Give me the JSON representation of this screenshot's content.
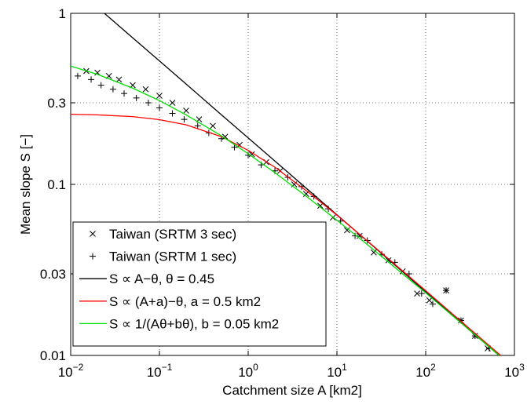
{
  "chart_data": {
    "type": "scatter",
    "xlabel": "Catchment size A [km2]",
    "ylabel": "Mean slope S [−]",
    "xscale": "log",
    "yscale": "log",
    "grid": true,
    "legend": "lower left",
    "xlim": [
      0.01,
      1000
    ],
    "ylim": [
      0.01,
      1
    ],
    "xticks": [
      {
        "value": 0.01,
        "label": "10−2"
      },
      {
        "value": 0.1,
        "label": "10−1"
      },
      {
        "value": 1,
        "label": "100"
      },
      {
        "value": 10,
        "label": "101"
      },
      {
        "value": 100,
        "label": "102"
      },
      {
        "value": 1000,
        "label": "103"
      }
    ],
    "yticks": [
      0.01,
      0.03,
      0.1,
      0.3,
      1
    ],
    "series": [
      {
        "name": "Taiwan (SRTM 3 sec)",
        "mark": "x",
        "color": "#000000",
        "x": [
          0.015,
          0.02,
          0.027,
          0.035,
          0.05,
          0.07,
          0.1,
          0.14,
          0.2,
          0.28,
          0.4,
          0.55,
          0.8,
          1.1,
          1.6,
          2.3,
          3.3,
          4.5,
          6.5,
          9,
          13,
          18,
          26,
          38,
          55,
          80,
          110,
          170,
          250,
          360,
          500
        ],
        "values": [
          0.46,
          0.45,
          0.43,
          0.41,
          0.38,
          0.36,
          0.33,
          0.3,
          0.27,
          0.24,
          0.22,
          0.19,
          0.17,
          0.15,
          0.135,
          0.12,
          0.1,
          0.088,
          0.075,
          0.064,
          0.054,
          0.05,
          0.04,
          0.036,
          0.031,
          0.023,
          0.021,
          0.024,
          0.016,
          0.013,
          0.011
        ]
      },
      {
        "name": "Taiwan (SRTM 1 sec)",
        "mark": "+",
        "color": "#000000",
        "x": [
          0.012,
          0.017,
          0.022,
          0.03,
          0.04,
          0.055,
          0.075,
          0.1,
          0.14,
          0.19,
          0.27,
          0.36,
          0.5,
          0.7,
          1,
          1.4,
          2,
          2.8,
          4,
          5.5,
          8,
          11,
          16,
          22,
          32,
          45,
          65,
          90,
          120,
          170,
          250,
          360,
          520
        ],
        "values": [
          0.43,
          0.41,
          0.38,
          0.36,
          0.34,
          0.32,
          0.3,
          0.28,
          0.26,
          0.24,
          0.22,
          0.2,
          0.185,
          0.165,
          0.148,
          0.13,
          0.12,
          0.11,
          0.097,
          0.085,
          0.072,
          0.061,
          0.05,
          0.047,
          0.039,
          0.035,
          0.03,
          0.023,
          0.02,
          0.024,
          0.016,
          0.013,
          0.011
        ]
      },
      {
        "name": "S ∝ A−θ, θ = 0.45",
        "mark": "line",
        "color": "#000000",
        "x": [
          0.024,
          0.05,
          0.1,
          0.2,
          0.5,
          1,
          2,
          5,
          10,
          20,
          50,
          100,
          200,
          500,
          700
        ],
        "values": [
          1.0,
          0.719,
          0.527,
          0.386,
          0.255,
          0.187,
          0.137,
          0.0906,
          0.0664,
          0.0486,
          0.0322,
          0.0235,
          0.0172,
          0.0114,
          0.0098
        ]
      },
      {
        "name": "S ∝ (A+a)−θ, a = 0.5 km2",
        "mark": "line",
        "color": "#ff0000",
        "x": [
          0.01,
          0.02,
          0.05,
          0.1,
          0.2,
          0.5,
          1,
          2,
          5,
          10,
          20,
          50,
          100,
          200,
          500,
          700
        ],
        "values": [
          0.257,
          0.255,
          0.249,
          0.239,
          0.223,
          0.19,
          0.158,
          0.126,
          0.0882,
          0.066,
          0.0487,
          0.0325,
          0.0239,
          0.0175,
          0.0116,
          0.01
        ]
      },
      {
        "name": "S ∝ 1/(Aθ+bθ), b = 0.05 km2",
        "mark": "line",
        "color": "#00e000",
        "x": [
          0.01,
          0.02,
          0.05,
          0.1,
          0.2,
          0.5,
          1,
          2,
          5,
          10,
          20,
          50,
          100,
          200,
          500,
          700
        ],
        "values": [
          0.492,
          0.44,
          0.365,
          0.309,
          0.255,
          0.192,
          0.151,
          0.117,
          0.0818,
          0.0617,
          0.0463,
          0.0312,
          0.0232,
          0.0171,
          0.0114,
          0.0098
        ]
      }
    ]
  }
}
